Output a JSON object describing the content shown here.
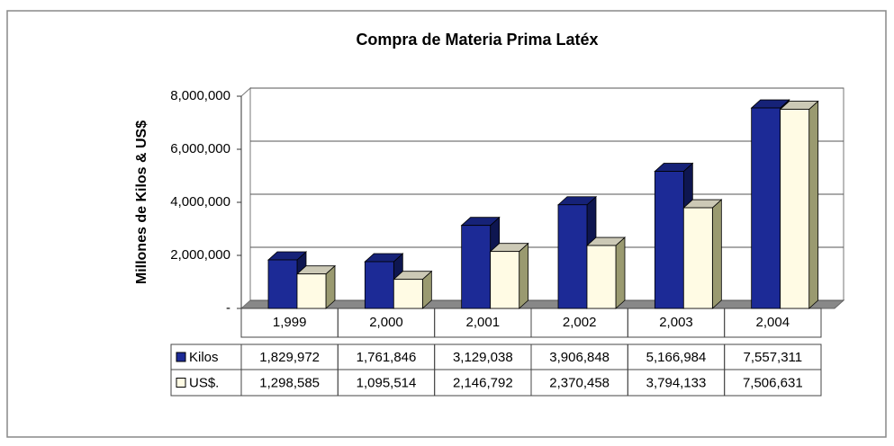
{
  "chart_data": {
    "type": "bar",
    "title": "Compra de Materia Prima Latéx",
    "y_label": "Millones de Kilos & US$",
    "categories": [
      "1,999",
      "2,000",
      "2,001",
      "2,002",
      "2,003",
      "2,004"
    ],
    "series": [
      {
        "name": "Kilos",
        "color": "#1c2a96",
        "values": [
          1829972,
          1761846,
          3129038,
          3906848,
          5166984,
          7557311
        ],
        "value_labels": [
          "1,829,972",
          "1,761,846",
          "3,129,038",
          "3,906,848",
          "5,166,984",
          "7,557,311"
        ]
      },
      {
        "name": "US$.",
        "color": "#fffbe4",
        "values": [
          1298585,
          1095514,
          2146792,
          2370458,
          3794133,
          7506631
        ],
        "value_labels": [
          "1,298,585",
          "1,095,514",
          "2,146,792",
          "2,370,458",
          "3,794,133",
          "7,506,631"
        ]
      }
    ],
    "ylim": [
      0,
      8000000
    ],
    "yticks": [
      {
        "value": 0,
        "label": "-"
      },
      {
        "value": 2000000,
        "label": "2,000,000"
      },
      {
        "value": 4000000,
        "label": "4,000,000"
      },
      {
        "value": 6000000,
        "label": "6,000,000"
      },
      {
        "value": 8000000,
        "label": "8,000,000"
      }
    ],
    "grid": true,
    "data_table": true
  }
}
